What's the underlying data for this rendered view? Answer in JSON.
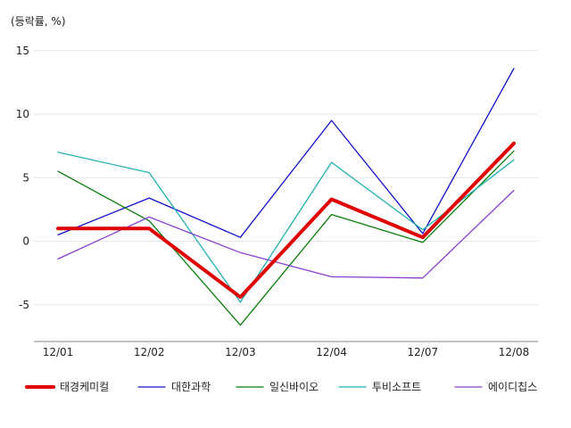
{
  "chart_data": {
    "type": "line",
    "unit_label": "(등락률, %)",
    "categories": [
      "12/01",
      "12/02",
      "12/03",
      "12/04",
      "12/07",
      "12/08"
    ],
    "ylim": [
      -8,
      16
    ],
    "yticks": [
      15,
      10,
      5,
      0,
      -5
    ],
    "ytick_labels": [
      "15",
      "10",
      "5",
      "0",
      "-5"
    ],
    "grid": true,
    "legend_position": "bottom",
    "series": [
      {
        "name": "태경케미컬",
        "color": "#e00000",
        "width": 4,
        "values": [
          1.0,
          1.0,
          -4.4,
          3.3,
          0.3,
          7.7
        ]
      },
      {
        "name": "대한과학",
        "color": "#1010c8",
        "width": 1.3,
        "values": [
          0.5,
          3.4,
          0.3,
          9.5,
          0.6,
          13.6
        ]
      },
      {
        "name": "일신바이오",
        "color": "#0a7d0a",
        "width": 1.3,
        "values": [
          5.5,
          1.6,
          -6.6,
          2.1,
          -0.1,
          7.1
        ]
      },
      {
        "name": "투비소프트",
        "color": "#22b0b0",
        "width": 1.3,
        "values": [
          7.0,
          5.4,
          -4.8,
          6.2,
          0.9,
          6.4
        ]
      },
      {
        "name": "에이디칩스",
        "color": "#8a3fd0",
        "width": 1.3,
        "values": [
          -1.4,
          1.9,
          -0.9,
          -2.8,
          -2.9,
          4.0
        ]
      }
    ]
  }
}
